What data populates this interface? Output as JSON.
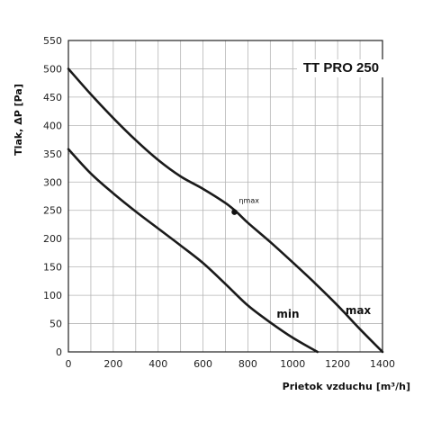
{
  "chart_data": {
    "type": "line",
    "title": "TT PRO 250",
    "xlabel": "Prietok vzduchu",
    "xlabel_unit": "[m³/h]",
    "ylabel": "Tlak, ΔP [Pa]",
    "xlim": [
      0,
      1400
    ],
    "ylim": [
      0,
      550
    ],
    "xticks": [
      0,
      200,
      400,
      600,
      800,
      1000,
      1200,
      1400
    ],
    "yticks": [
      0,
      50,
      100,
      150,
      200,
      250,
      300,
      350,
      400,
      450,
      500,
      550
    ],
    "x_grid_step": 100,
    "grid": true,
    "series": [
      {
        "name": "max",
        "x": [
          0,
          100,
          200,
          300,
          400,
          500,
          600,
          700,
          750,
          800,
          900,
          1000,
          1100,
          1200,
          1300,
          1400
        ],
        "y": [
          500,
          455,
          413,
          374,
          339,
          310,
          288,
          263,
          247,
          228,
          194,
          158,
          121,
          82,
          40,
          0
        ]
      },
      {
        "name": "min",
        "x": [
          0,
          100,
          200,
          300,
          400,
          500,
          600,
          700,
          800,
          900,
          1000,
          1110
        ],
        "y": [
          358,
          315,
          280,
          248,
          218,
          188,
          157,
          120,
          82,
          52,
          25,
          0
        ]
      }
    ],
    "annotations": [
      {
        "text": "ηmax",
        "x": 740,
        "y": 247
      }
    ]
  }
}
